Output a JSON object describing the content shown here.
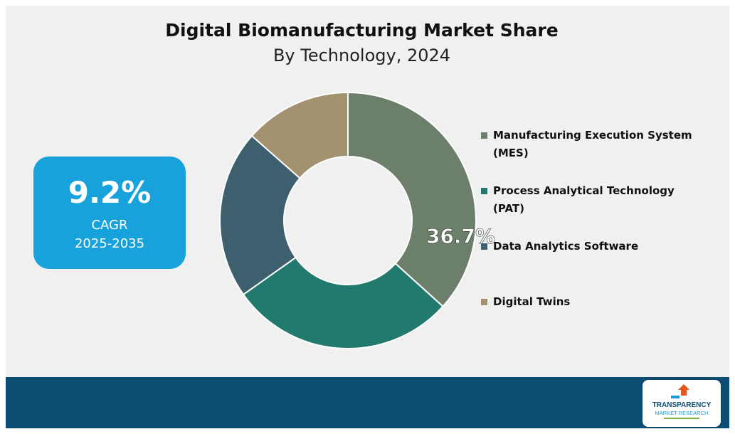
{
  "header": {
    "title": "Digital Biomanufacturing Market Share",
    "subtitle": "By Technology, 2024"
  },
  "cagr_card": {
    "value": "9.2%",
    "label": "CAGR",
    "years": "2025-2035",
    "color": "#18a2dc"
  },
  "chart_data": {
    "type": "pie",
    "donut": true,
    "title": "Digital Biomanufacturing Market Share",
    "subtitle": "By Technology, 2024",
    "categories": [
      "Manufacturing Execution System (MES)",
      "Process Analytical Technology (PAT)",
      "Data Analytics Software",
      "Digital Twins"
    ],
    "values": [
      36.7,
      28.5,
      21.3,
      13.5
    ],
    "colors": [
      "#6b7f6b",
      "#227a6e",
      "#3d5f6e",
      "#a39270"
    ],
    "data_labels": [
      "36.7%",
      "",
      "",
      ""
    ],
    "legend_position": "right"
  },
  "legend": {
    "items": [
      {
        "label": "Manufacturing Execution System (MES)",
        "color": "#6b7f6b"
      },
      {
        "label": "Process Analytical Technology (PAT)",
        "color": "#227a6e"
      },
      {
        "label": "Data Analytics Software",
        "color": "#3d5f6e"
      },
      {
        "label": "Digital Twins",
        "color": "#a39270"
      }
    ]
  },
  "logo": {
    "text_line1": "TRANSPARENCY",
    "text_line2": "MARKET RESEARCH",
    "icon": "tmr-logo-icon"
  },
  "footer": {
    "color": "#0e4d73"
  }
}
